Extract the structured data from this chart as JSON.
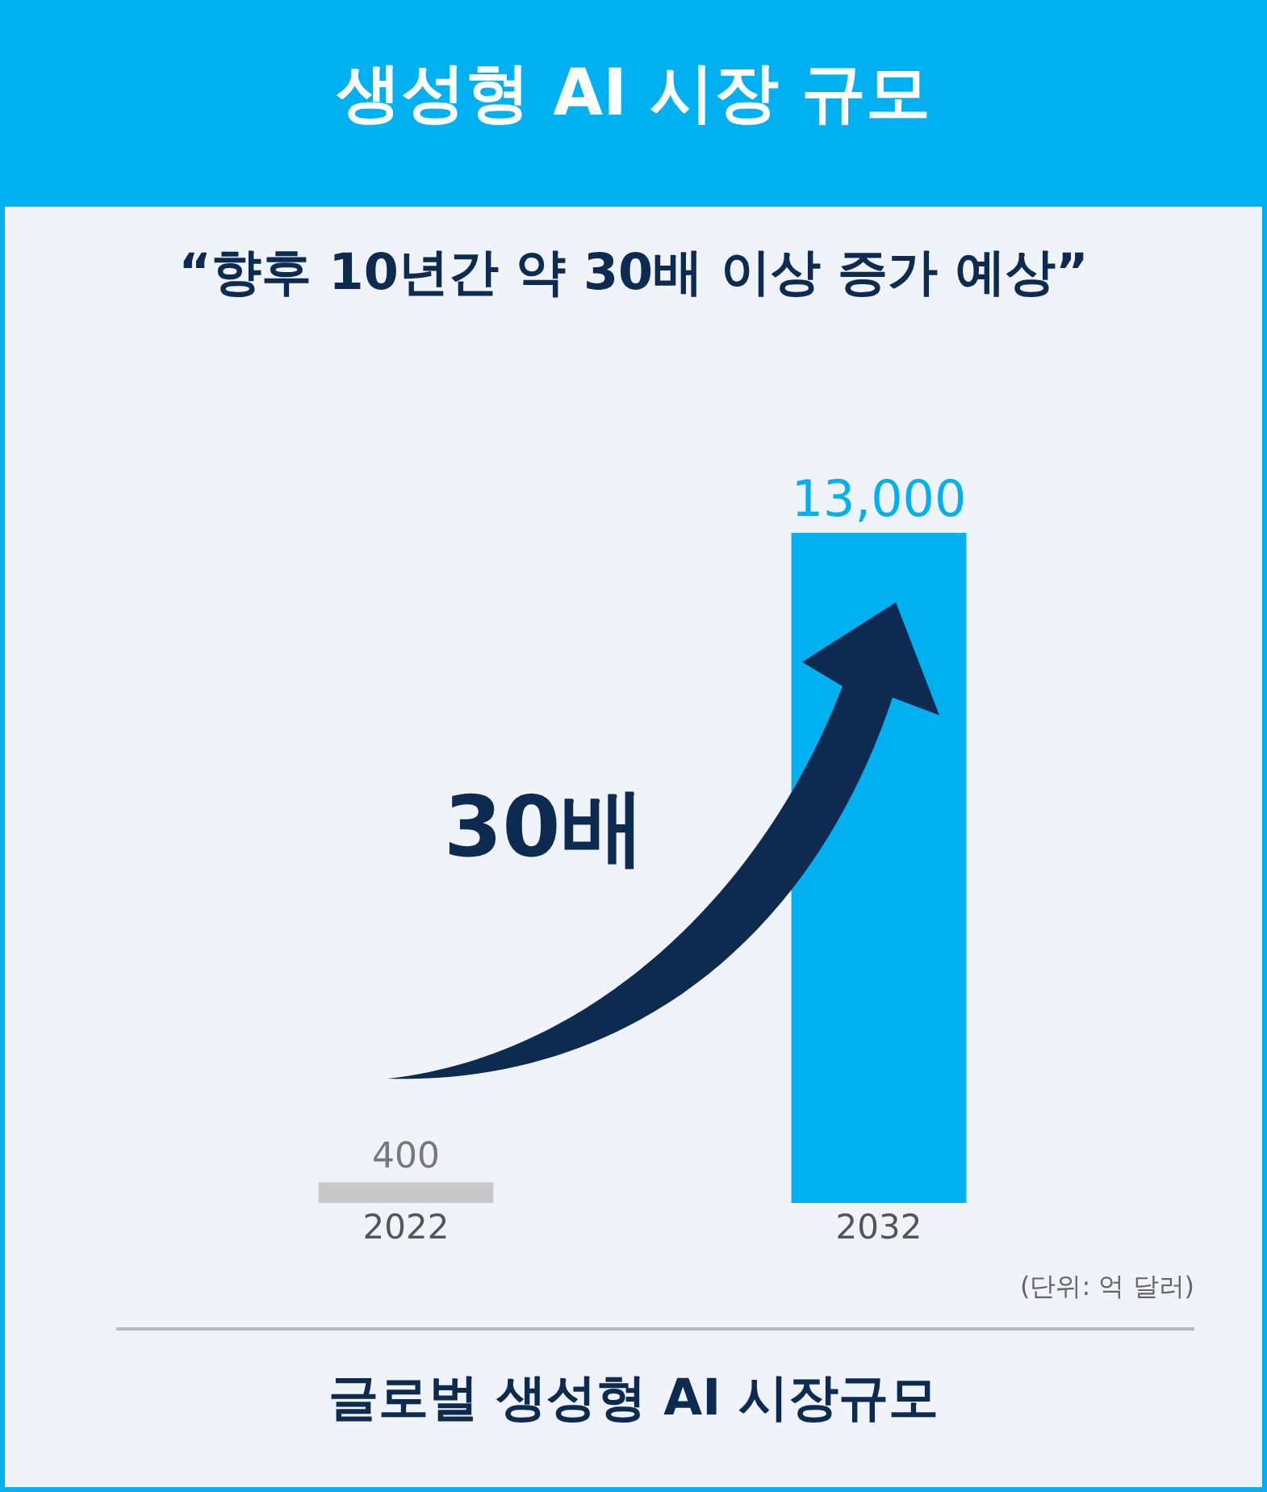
{
  "chart_data": {
    "type": "bar",
    "title": "생성형 AI 시장 규모",
    "subtitle": "“향후 10년간 약 30배 이상 증가 예상”",
    "categories": [
      "2022",
      "2032"
    ],
    "values": [
      400,
      13000
    ],
    "colors": [
      "#c8c8c8",
      "#00b0f0"
    ],
    "value_labels": [
      "400",
      "13,000"
    ],
    "annotations": [
      "30배",
      "(단위: 억 달러)",
      "글로벌 생성형 AI 시장규모"
    ]
  }
}
